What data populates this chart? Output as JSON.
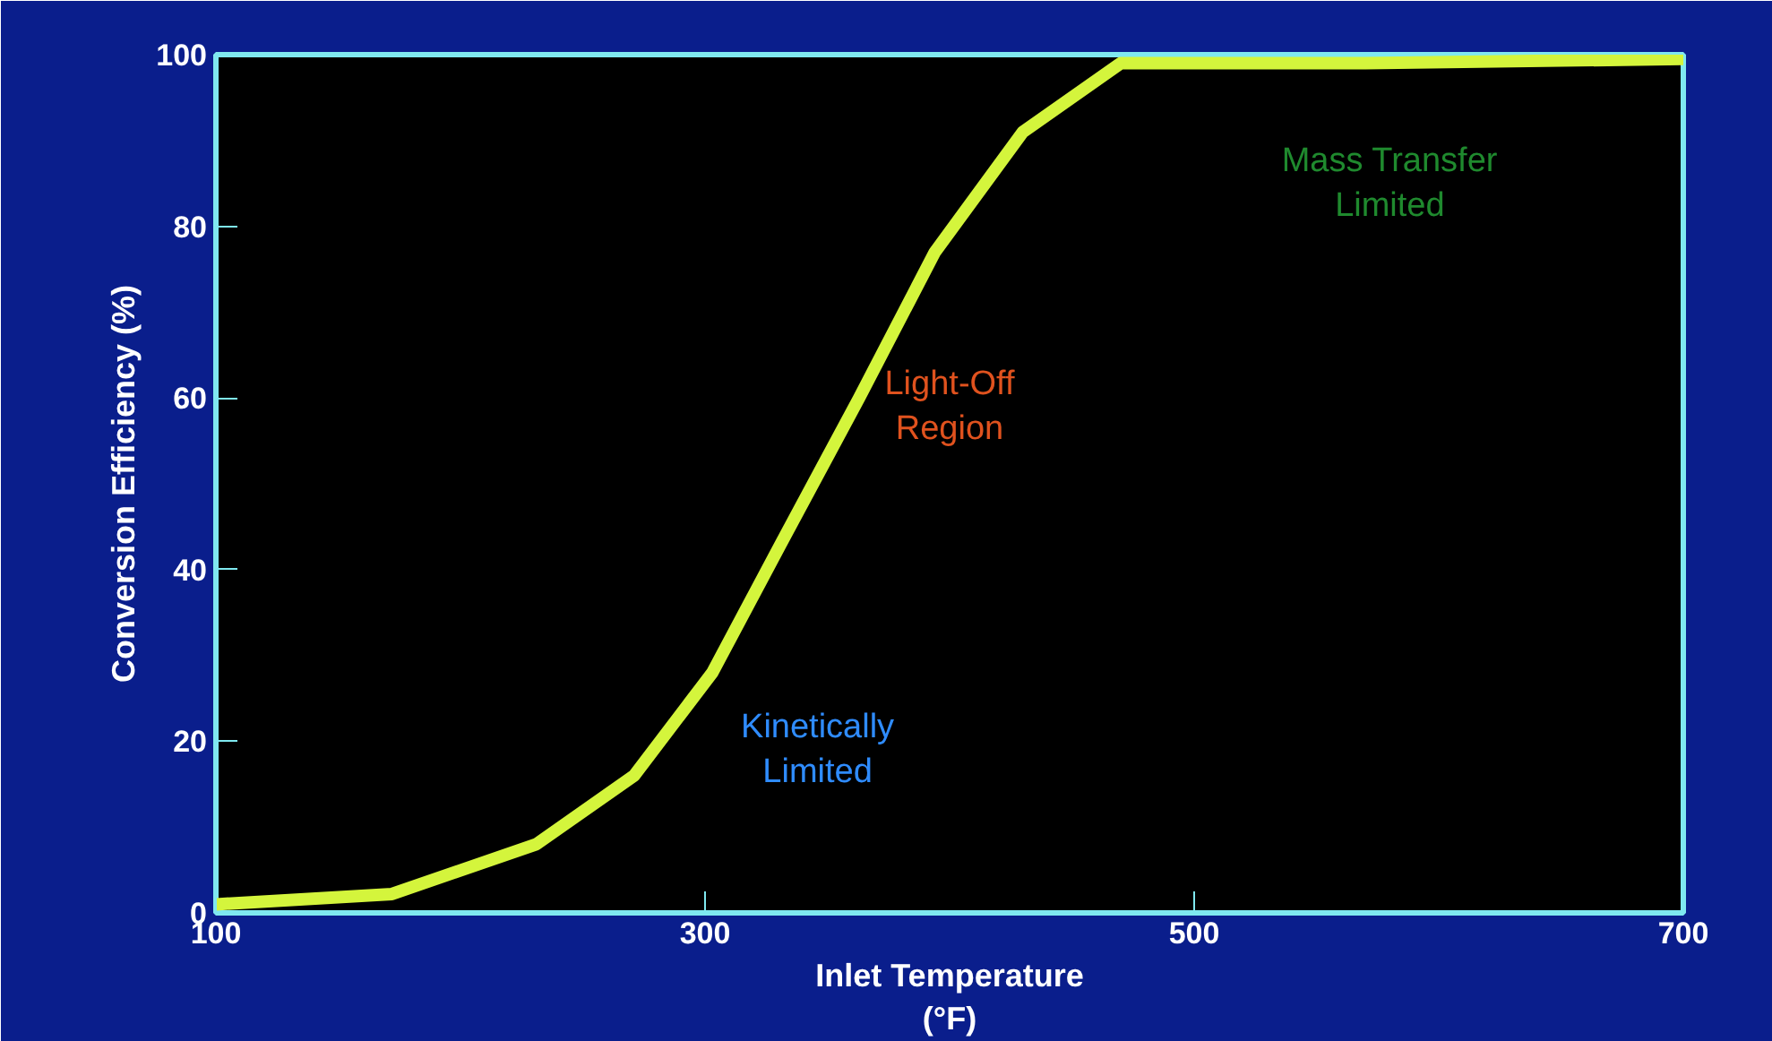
{
  "chart_data": {
    "type": "line",
    "xlabel": "Inlet Temperature\n(°F)",
    "ylabel": "Conversion Efficiency (%)",
    "x": [
      100,
      172,
      231,
      271,
      303,
      331,
      363,
      394,
      430,
      470,
      569,
      700
    ],
    "series": [
      {
        "color": "#d4f53c",
        "values": [
          1,
          2.2,
          8,
          16,
          28,
          43,
          60,
          77,
          91,
          99,
          99,
          99.5
        ]
      }
    ],
    "xlim": [
      100,
      700
    ],
    "ylim": [
      0,
      100
    ],
    "xticks": [
      100,
      300,
      500,
      700
    ],
    "yticks": [
      0,
      20,
      40,
      60,
      80,
      100
    ],
    "grid": false,
    "marker": "none",
    "line_style": "solid",
    "annotations": [
      "Kinetically\nLimited",
      "Light-Off\nRegion",
      "Mass Transfer\nLimited"
    ]
  }
}
